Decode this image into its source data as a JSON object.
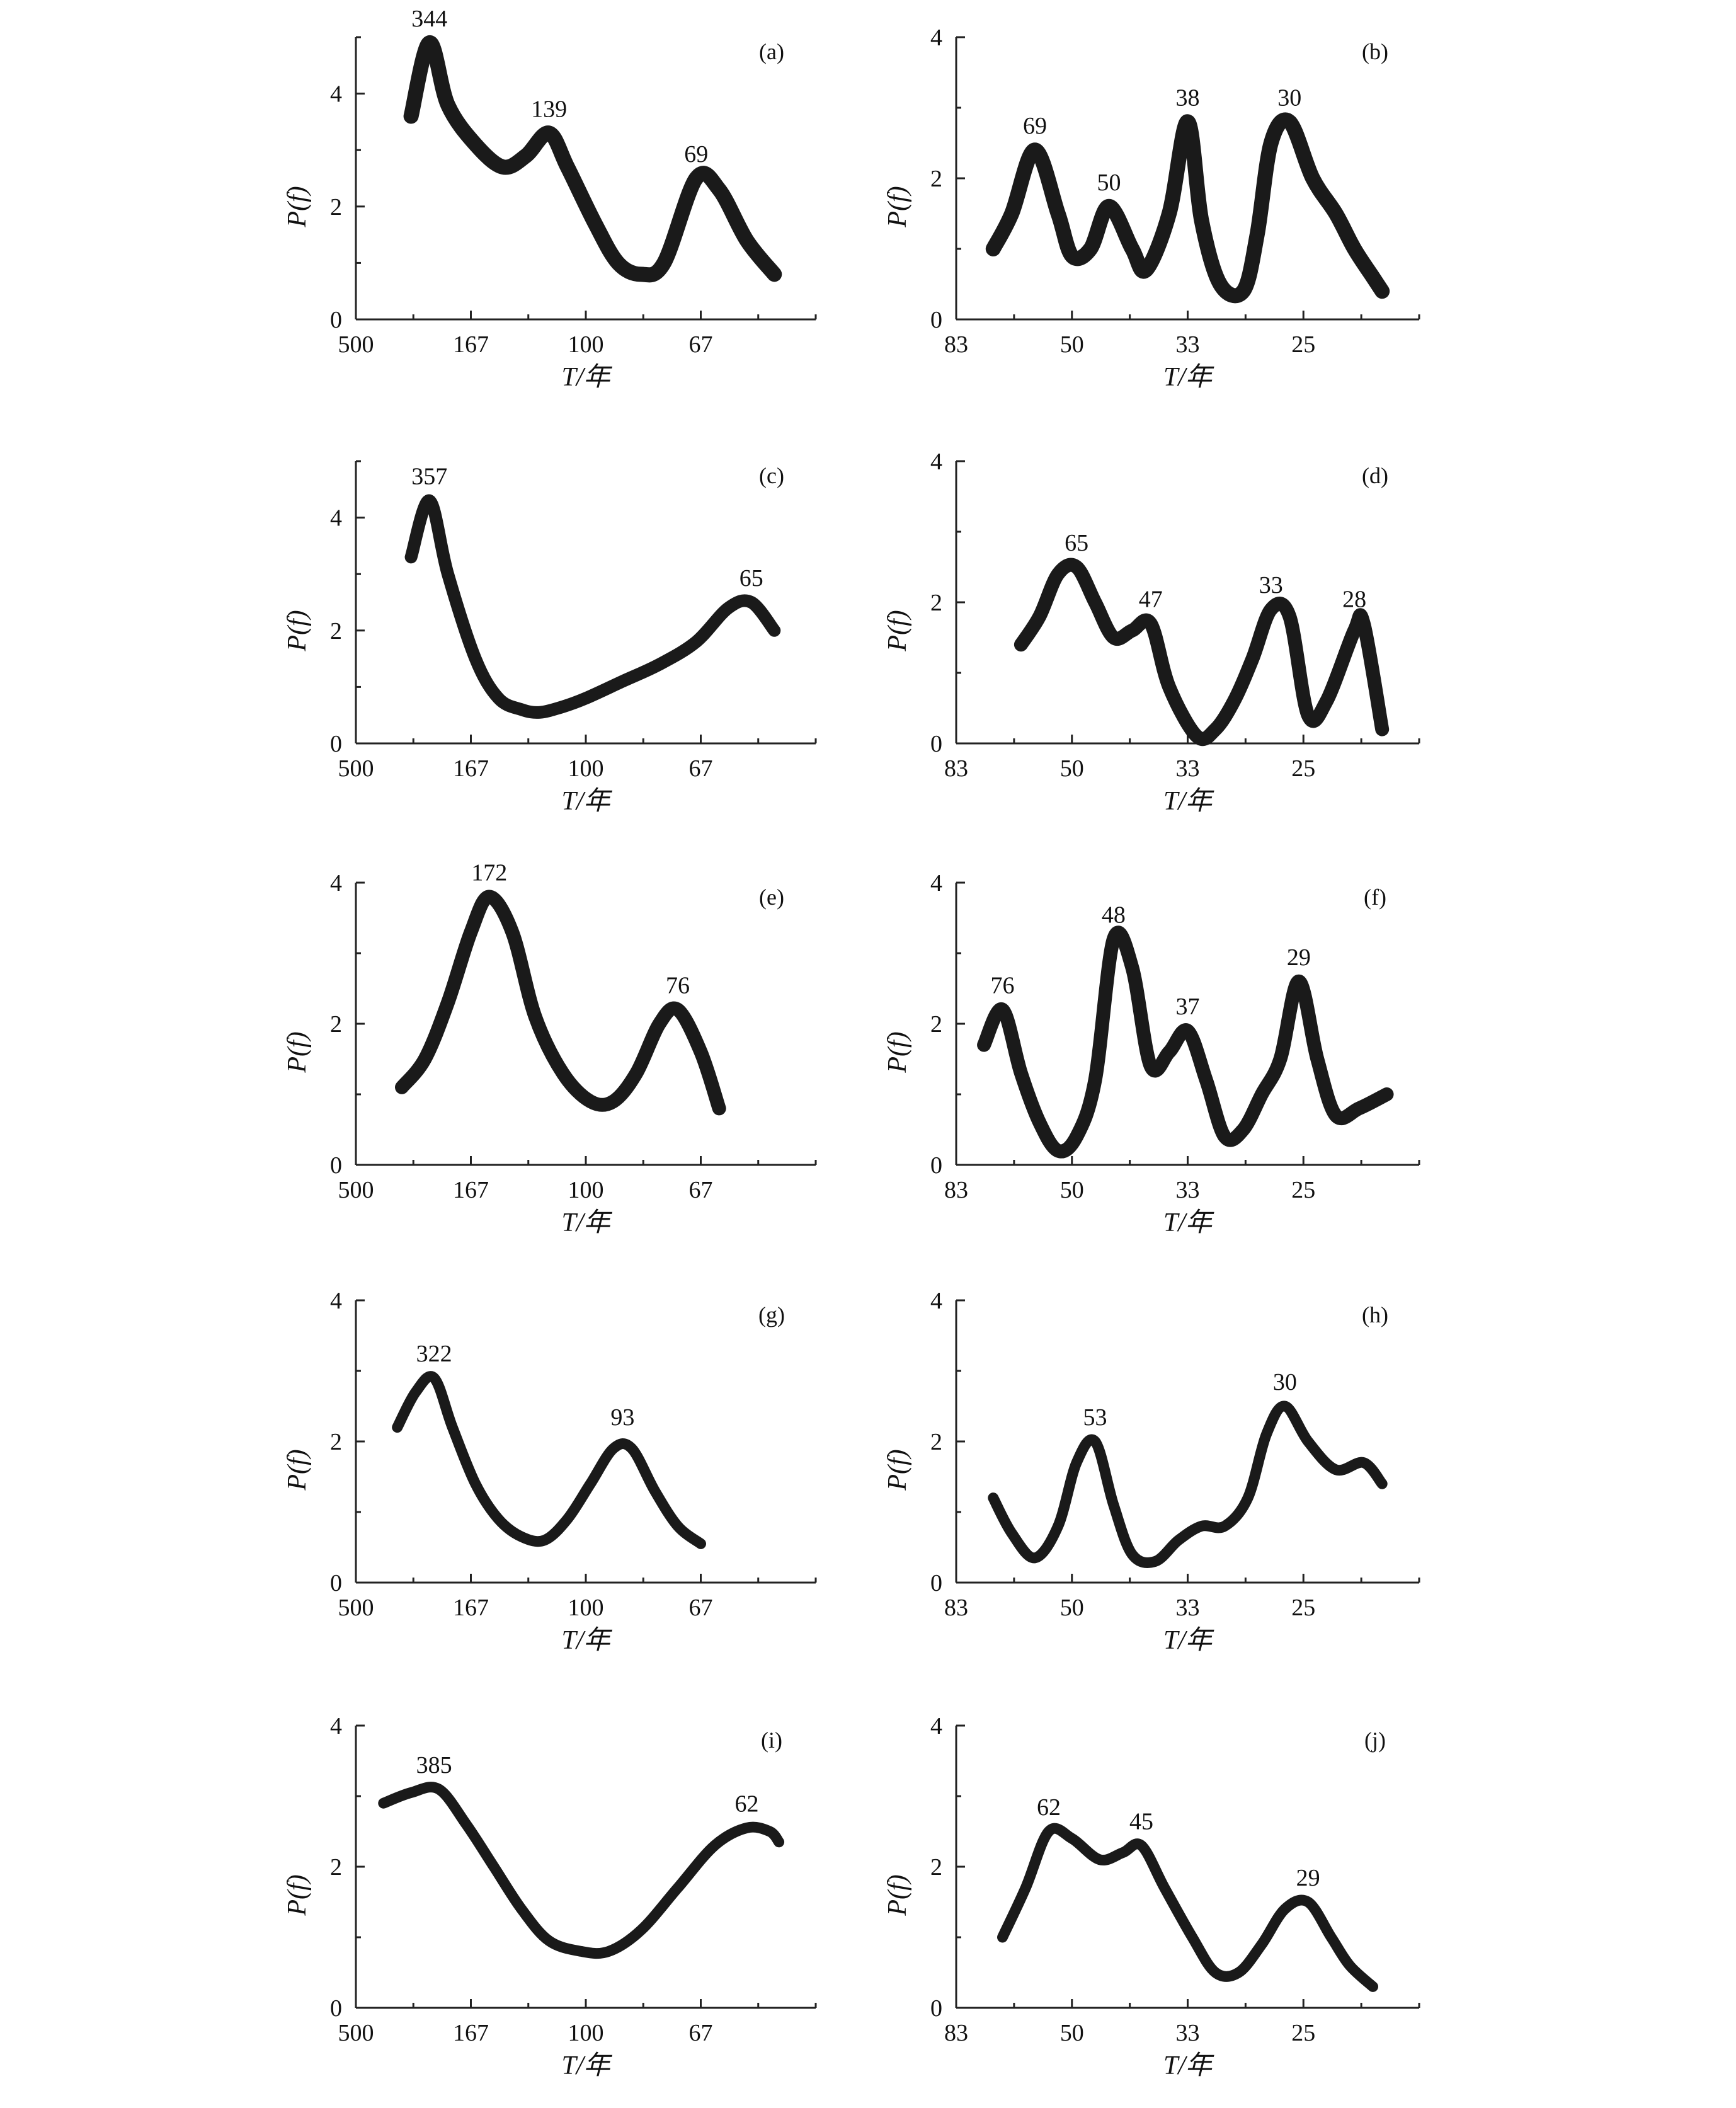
{
  "chart_data": [
    {
      "type": "line",
      "panel_label": "(a)",
      "xticks": [
        "500",
        "167",
        "100",
        "67"
      ],
      "yticks": [
        "0",
        "2",
        "4"
      ],
      "xlabel": "T/年",
      "ylabel": "P(f)",
      "ylim": [
        0,
        5
      ],
      "series": [
        {
          "x": [
            0.12,
            0.16,
            0.2,
            0.26,
            0.32,
            0.37,
            0.42,
            0.46,
            0.52,
            0.57,
            0.62,
            0.67,
            0.74,
            0.79,
            0.85,
            0.91
          ],
          "y": [
            3.6,
            4.9,
            3.8,
            3.1,
            2.7,
            2.9,
            3.3,
            2.7,
            1.7,
            1.0,
            0.8,
            1.0,
            2.5,
            2.3,
            1.4,
            0.8
          ]
        }
      ],
      "peaks": [
        {
          "label": "344",
          "x": 0.16,
          "y": 4.9
        },
        {
          "label": "139",
          "x": 0.42,
          "y": 3.3
        },
        {
          "label": "69",
          "x": 0.74,
          "y": 2.5
        }
      ]
    },
    {
      "type": "line",
      "panel_label": "(b)",
      "xticks": [
        "83",
        "50",
        "33",
        "25"
      ],
      "yticks": [
        "0",
        "2",
        "4"
      ],
      "xlabel": "T/年",
      "ylabel": "P(f)",
      "ylim": [
        0,
        4
      ],
      "series": [
        {
          "x": [
            0.08,
            0.12,
            0.17,
            0.22,
            0.25,
            0.29,
            0.33,
            0.38,
            0.41,
            0.46,
            0.5,
            0.53,
            0.57,
            0.62,
            0.65,
            0.68,
            0.72,
            0.77,
            0.82,
            0.86,
            0.9,
            0.92
          ],
          "y": [
            1.0,
            1.5,
            2.4,
            1.5,
            0.9,
            1.0,
            1.6,
            1.0,
            0.7,
            1.5,
            2.8,
            1.4,
            0.5,
            0.4,
            1.2,
            2.5,
            2.8,
            2.0,
            1.5,
            1.0,
            0.6,
            0.4
          ]
        }
      ],
      "peaks": [
        {
          "label": "69",
          "x": 0.17,
          "y": 2.4
        },
        {
          "label": "50",
          "x": 0.33,
          "y": 1.6
        },
        {
          "label": "38",
          "x": 0.5,
          "y": 2.8
        },
        {
          "label": "30",
          "x": 0.72,
          "y": 2.8
        }
      ]
    },
    {
      "type": "line",
      "panel_label": "(c)",
      "xticks": [
        "500",
        "167",
        "100",
        "67"
      ],
      "yticks": [
        "0",
        "2",
        "4"
      ],
      "xlabel": "T/年",
      "ylabel": "P(f)",
      "ylim": [
        0,
        5
      ],
      "series": [
        {
          "x": [
            0.12,
            0.16,
            0.2,
            0.26,
            0.31,
            0.36,
            0.4,
            0.45,
            0.5,
            0.58,
            0.66,
            0.74,
            0.81,
            0.86,
            0.91
          ],
          "y": [
            3.3,
            4.3,
            3.0,
            1.5,
            0.8,
            0.6,
            0.55,
            0.65,
            0.8,
            1.1,
            1.4,
            1.8,
            2.4,
            2.5,
            2.0
          ]
        }
      ],
      "peaks": [
        {
          "label": "357",
          "x": 0.16,
          "y": 4.3
        },
        {
          "label": "65",
          "x": 0.86,
          "y": 2.5
        }
      ]
    },
    {
      "type": "line",
      "panel_label": "(d)",
      "xticks": [
        "83",
        "50",
        "33",
        "25"
      ],
      "yticks": [
        "0",
        "2",
        "4"
      ],
      "xlabel": "T/年",
      "ylabel": "P(f)",
      "ylim": [
        0,
        4
      ],
      "series": [
        {
          "x": [
            0.14,
            0.18,
            0.22,
            0.26,
            0.3,
            0.34,
            0.38,
            0.42,
            0.46,
            0.52,
            0.56,
            0.6,
            0.64,
            0.68,
            0.72,
            0.76,
            0.8,
            0.86,
            0.88,
            0.92
          ],
          "y": [
            1.4,
            1.8,
            2.4,
            2.5,
            2.0,
            1.5,
            1.6,
            1.7,
            0.8,
            0.1,
            0.2,
            0.6,
            1.2,
            1.9,
            1.8,
            0.4,
            0.6,
            1.6,
            1.7,
            0.2
          ]
        }
      ],
      "peaks": [
        {
          "label": "65",
          "x": 0.26,
          "y": 2.5
        },
        {
          "label": "47",
          "x": 0.42,
          "y": 1.7
        },
        {
          "label": "33",
          "x": 0.68,
          "y": 1.9
        },
        {
          "label": "28",
          "x": 0.86,
          "y": 1.7
        }
      ]
    },
    {
      "type": "line",
      "panel_label": "(e)",
      "xticks": [
        "500",
        "167",
        "100",
        "67"
      ],
      "yticks": [
        "0",
        "2",
        "4"
      ],
      "xlabel": "T/年",
      "ylabel": "P(f)",
      "ylim": [
        0,
        4
      ],
      "series": [
        {
          "x": [
            0.1,
            0.15,
            0.2,
            0.25,
            0.29,
            0.34,
            0.39,
            0.45,
            0.51,
            0.56,
            0.61,
            0.66,
            0.7,
            0.75,
            0.79
          ],
          "y": [
            1.1,
            1.5,
            2.3,
            3.3,
            3.8,
            3.3,
            2.1,
            1.3,
            0.9,
            0.9,
            1.3,
            2.0,
            2.2,
            1.6,
            0.8
          ]
        }
      ],
      "peaks": [
        {
          "label": "172",
          "x": 0.29,
          "y": 3.8
        },
        {
          "label": "76",
          "x": 0.7,
          "y": 2.2
        }
      ]
    },
    {
      "type": "line",
      "panel_label": "(f)",
      "xticks": [
        "83",
        "50",
        "33",
        "25"
      ],
      "yticks": [
        "0",
        "2",
        "4"
      ],
      "xlabel": "T/年",
      "ylabel": "P(f)",
      "ylim": [
        0,
        4
      ],
      "series": [
        {
          "x": [
            0.06,
            0.1,
            0.14,
            0.18,
            0.22,
            0.26,
            0.3,
            0.34,
            0.38,
            0.42,
            0.46,
            0.5,
            0.54,
            0.58,
            0.62,
            0.66,
            0.7,
            0.74,
            0.78,
            0.82,
            0.87,
            0.93
          ],
          "y": [
            1.7,
            2.2,
            1.3,
            0.6,
            0.2,
            0.4,
            1.2,
            3.2,
            2.8,
            1.4,
            1.6,
            1.9,
            1.2,
            0.4,
            0.5,
            1.0,
            1.5,
            2.6,
            1.5,
            0.7,
            0.8,
            1.0
          ]
        }
      ],
      "peaks": [
        {
          "label": "76",
          "x": 0.1,
          "y": 2.2
        },
        {
          "label": "48",
          "x": 0.34,
          "y": 3.2
        },
        {
          "label": "37",
          "x": 0.5,
          "y": 1.9
        },
        {
          "label": "29",
          "x": 0.74,
          "y": 2.6
        }
      ]
    },
    {
      "type": "line",
      "panel_label": "(g)",
      "xticks": [
        "500",
        "167",
        "100",
        "67"
      ],
      "yticks": [
        "0",
        "2",
        "4"
      ],
      "xlabel": "T/年",
      "ylabel": "P(f)",
      "ylim": [
        0,
        4
      ],
      "series": [
        {
          "x": [
            0.09,
            0.13,
            0.17,
            0.21,
            0.26,
            0.31,
            0.36,
            0.41,
            0.46,
            0.51,
            0.56,
            0.6,
            0.65,
            0.7,
            0.75
          ],
          "y": [
            2.2,
            2.7,
            2.9,
            2.2,
            1.4,
            0.9,
            0.65,
            0.6,
            0.9,
            1.4,
            1.9,
            1.9,
            1.3,
            0.8,
            0.55
          ]
        }
      ],
      "peaks": [
        {
          "label": "322",
          "x": 0.17,
          "y": 2.9
        },
        {
          "label": "93",
          "x": 0.58,
          "y": 2.0
        }
      ]
    },
    {
      "type": "line",
      "panel_label": "(h)",
      "xticks": [
        "83",
        "50",
        "33",
        "25"
      ],
      "yticks": [
        "0",
        "2",
        "4"
      ],
      "xlabel": "T/年",
      "ylabel": "P(f)",
      "ylim": [
        0,
        4
      ],
      "series": [
        {
          "x": [
            0.08,
            0.12,
            0.17,
            0.22,
            0.26,
            0.3,
            0.34,
            0.38,
            0.43,
            0.48,
            0.53,
            0.58,
            0.63,
            0.67,
            0.71,
            0.76,
            0.82,
            0.88,
            0.92
          ],
          "y": [
            1.2,
            0.7,
            0.35,
            0.8,
            1.7,
            2.0,
            1.1,
            0.4,
            0.3,
            0.6,
            0.8,
            0.8,
            1.2,
            2.1,
            2.5,
            2.0,
            1.6,
            1.7,
            1.4
          ]
        }
      ],
      "peaks": [
        {
          "label": "53",
          "x": 0.3,
          "y": 2.0
        },
        {
          "label": "30",
          "x": 0.71,
          "y": 2.5
        }
      ]
    },
    {
      "type": "line",
      "panel_label": "(i)",
      "xticks": [
        "500",
        "167",
        "100",
        "67"
      ],
      "yticks": [
        "0",
        "2",
        "4"
      ],
      "xlabel": "T/年",
      "ylabel": "P(f)",
      "ylim": [
        0,
        4
      ],
      "series": [
        {
          "x": [
            0.06,
            0.12,
            0.18,
            0.24,
            0.3,
            0.36,
            0.42,
            0.49,
            0.55,
            0.62,
            0.7,
            0.78,
            0.85,
            0.9,
            0.92
          ],
          "y": [
            2.9,
            3.05,
            3.1,
            2.6,
            2.0,
            1.4,
            0.95,
            0.8,
            0.8,
            1.1,
            1.7,
            2.3,
            2.55,
            2.5,
            2.35
          ]
        }
      ],
      "peaks": [
        {
          "label": "385",
          "x": 0.17,
          "y": 3.1
        },
        {
          "label": "62",
          "x": 0.85,
          "y": 2.55
        }
      ]
    },
    {
      "type": "line",
      "panel_label": "(j)",
      "xticks": [
        "83",
        "50",
        "33",
        "25"
      ],
      "yticks": [
        "0",
        "2",
        "4"
      ],
      "xlabel": "T/年",
      "ylabel": "P(f)",
      "ylim": [
        0,
        4
      ],
      "series": [
        {
          "x": [
            0.1,
            0.15,
            0.2,
            0.25,
            0.31,
            0.36,
            0.4,
            0.45,
            0.51,
            0.56,
            0.61,
            0.66,
            0.71,
            0.76,
            0.81,
            0.85,
            0.9
          ],
          "y": [
            1.0,
            1.7,
            2.5,
            2.4,
            2.1,
            2.2,
            2.3,
            1.7,
            1.0,
            0.5,
            0.5,
            0.9,
            1.4,
            1.5,
            1.0,
            0.6,
            0.3
          ]
        }
      ],
      "peaks": [
        {
          "label": "62",
          "x": 0.2,
          "y": 2.5
        },
        {
          "label": "45",
          "x": 0.4,
          "y": 2.3
        },
        {
          "label": "29",
          "x": 0.76,
          "y": 1.5
        }
      ]
    }
  ]
}
